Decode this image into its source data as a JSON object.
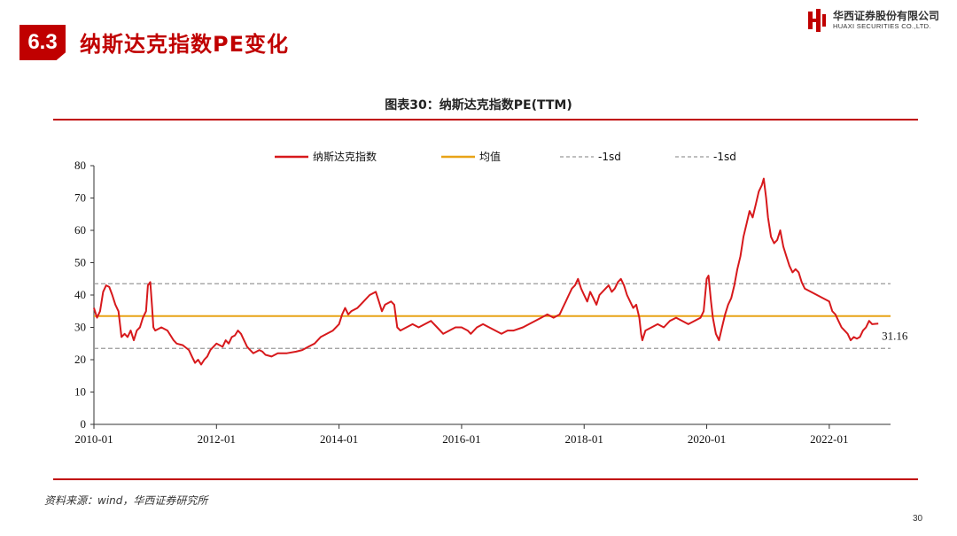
{
  "header": {
    "section_number": "6.3",
    "section_title": "纳斯达克指数PE变化",
    "logo_cn": "华西证券股份有限公司",
    "logo_en": "HUAXI SECURITIES CO.,LTD.",
    "brand_color": "#c00000"
  },
  "chart_title": "图表30：纳斯达克指数PE(TTM)",
  "source": "资料来源：wind，华西证券研究所",
  "page_number": "30",
  "chart_data": {
    "type": "line",
    "title": "图表30：纳斯达克指数PE(TTM)",
    "x_tick_labels": [
      "2010-01",
      "2012-01",
      "2014-01",
      "2016-01",
      "2018-01",
      "2020-01",
      "2022-01"
    ],
    "x_range": [
      2010.0,
      2022.9
    ],
    "ylim": [
      0,
      80
    ],
    "y_ticks": [
      0,
      10,
      20,
      30,
      40,
      50,
      60,
      70,
      80
    ],
    "grid": false,
    "legend_position": "top",
    "end_label": "31.16",
    "series": [
      {
        "name": "纳斯达克指数",
        "color": "#d7191c",
        "style": "solid",
        "points": [
          [
            2010.0,
            36
          ],
          [
            2010.05,
            33
          ],
          [
            2010.1,
            35
          ],
          [
            2010.15,
            41
          ],
          [
            2010.2,
            43
          ],
          [
            2010.25,
            42.5
          ],
          [
            2010.3,
            40
          ],
          [
            2010.35,
            37
          ],
          [
            2010.4,
            35
          ],
          [
            2010.45,
            27
          ],
          [
            2010.5,
            28
          ],
          [
            2010.55,
            27
          ],
          [
            2010.6,
            29
          ],
          [
            2010.65,
            26
          ],
          [
            2010.7,
            29
          ],
          [
            2010.75,
            30
          ],
          [
            2010.8,
            33
          ],
          [
            2010.85,
            35
          ],
          [
            2010.88,
            43
          ],
          [
            2010.92,
            44
          ],
          [
            2010.95,
            36
          ],
          [
            2010.97,
            30
          ],
          [
            2011.0,
            29
          ],
          [
            2011.1,
            30
          ],
          [
            2011.2,
            29
          ],
          [
            2011.3,
            26
          ],
          [
            2011.35,
            25
          ],
          [
            2011.45,
            24.5
          ],
          [
            2011.55,
            23
          ],
          [
            2011.6,
            21
          ],
          [
            2011.65,
            19
          ],
          [
            2011.7,
            20
          ],
          [
            2011.75,
            18.5
          ],
          [
            2011.8,
            20
          ],
          [
            2011.85,
            21
          ],
          [
            2011.9,
            23
          ],
          [
            2012.0,
            25
          ],
          [
            2012.1,
            24
          ],
          [
            2012.15,
            26
          ],
          [
            2012.2,
            25
          ],
          [
            2012.25,
            27
          ],
          [
            2012.3,
            27.5
          ],
          [
            2012.35,
            29
          ],
          [
            2012.4,
            28
          ],
          [
            2012.45,
            26
          ],
          [
            2012.5,
            24
          ],
          [
            2012.55,
            23
          ],
          [
            2012.6,
            22
          ],
          [
            2012.7,
            23
          ],
          [
            2012.75,
            22.5
          ],
          [
            2012.8,
            21.5
          ],
          [
            2012.9,
            21
          ],
          [
            2013.0,
            22
          ],
          [
            2013.15,
            22
          ],
          [
            2013.3,
            22.5
          ],
          [
            2013.4,
            23
          ],
          [
            2013.5,
            24
          ],
          [
            2013.6,
            25
          ],
          [
            2013.7,
            27
          ],
          [
            2013.8,
            28
          ],
          [
            2013.9,
            29
          ],
          [
            2014.0,
            31
          ],
          [
            2014.05,
            34
          ],
          [
            2014.1,
            36
          ],
          [
            2014.15,
            34
          ],
          [
            2014.2,
            35
          ],
          [
            2014.3,
            36
          ],
          [
            2014.4,
            38
          ],
          [
            2014.5,
            40
          ],
          [
            2014.6,
            41
          ],
          [
            2014.65,
            38
          ],
          [
            2014.7,
            35
          ],
          [
            2014.75,
            37
          ],
          [
            2014.85,
            38
          ],
          [
            2014.9,
            37
          ],
          [
            2014.95,
            30
          ],
          [
            2015.0,
            29
          ],
          [
            2015.1,
            30
          ],
          [
            2015.2,
            31
          ],
          [
            2015.3,
            30
          ],
          [
            2015.4,
            31
          ],
          [
            2015.5,
            32
          ],
          [
            2015.6,
            30
          ],
          [
            2015.7,
            28
          ],
          [
            2015.8,
            29
          ],
          [
            2015.9,
            30
          ],
          [
            2016.0,
            30
          ],
          [
            2016.1,
            29
          ],
          [
            2016.15,
            28
          ],
          [
            2016.25,
            30
          ],
          [
            2016.35,
            31
          ],
          [
            2016.45,
            30
          ],
          [
            2016.55,
            29
          ],
          [
            2016.65,
            28
          ],
          [
            2016.75,
            29
          ],
          [
            2016.85,
            29
          ],
          [
            2017.0,
            30
          ],
          [
            2017.1,
            31
          ],
          [
            2017.2,
            32
          ],
          [
            2017.3,
            33
          ],
          [
            2017.4,
            34
          ],
          [
            2017.5,
            33
          ],
          [
            2017.6,
            34
          ],
          [
            2017.65,
            36
          ],
          [
            2017.7,
            38
          ],
          [
            2017.75,
            40
          ],
          [
            2017.8,
            42
          ],
          [
            2017.85,
            43
          ],
          [
            2017.9,
            45
          ],
          [
            2017.95,
            42
          ],
          [
            2018.0,
            40
          ],
          [
            2018.05,
            38
          ],
          [
            2018.1,
            41
          ],
          [
            2018.15,
            39
          ],
          [
            2018.2,
            37
          ],
          [
            2018.25,
            40
          ],
          [
            2018.35,
            42
          ],
          [
            2018.4,
            43
          ],
          [
            2018.45,
            41
          ],
          [
            2018.5,
            42
          ],
          [
            2018.55,
            44
          ],
          [
            2018.6,
            45
          ],
          [
            2018.65,
            43
          ],
          [
            2018.7,
            40
          ],
          [
            2018.75,
            38
          ],
          [
            2018.8,
            36
          ],
          [
            2018.85,
            37
          ],
          [
            2018.9,
            33
          ],
          [
            2018.93,
            28
          ],
          [
            2018.95,
            26
          ],
          [
            2019.0,
            29
          ],
          [
            2019.1,
            30
          ],
          [
            2019.2,
            31
          ],
          [
            2019.3,
            30
          ],
          [
            2019.4,
            32
          ],
          [
            2019.5,
            33
          ],
          [
            2019.6,
            32
          ],
          [
            2019.7,
            31
          ],
          [
            2019.8,
            32
          ],
          [
            2019.9,
            33
          ],
          [
            2019.95,
            35
          ],
          [
            2020.0,
            45
          ],
          [
            2020.03,
            46
          ],
          [
            2020.07,
            38
          ],
          [
            2020.1,
            33
          ],
          [
            2020.15,
            28
          ],
          [
            2020.2,
            26
          ],
          [
            2020.25,
            30
          ],
          [
            2020.3,
            34
          ],
          [
            2020.35,
            37
          ],
          [
            2020.4,
            39
          ],
          [
            2020.45,
            43
          ],
          [
            2020.5,
            48
          ],
          [
            2020.55,
            52
          ],
          [
            2020.6,
            58
          ],
          [
            2020.65,
            62
          ],
          [
            2020.7,
            66
          ],
          [
            2020.75,
            64
          ],
          [
            2020.8,
            68
          ],
          [
            2020.85,
            72
          ],
          [
            2020.9,
            74
          ],
          [
            2020.93,
            76
          ],
          [
            2020.97,
            70
          ],
          [
            2021.0,
            64
          ],
          [
            2021.05,
            58
          ],
          [
            2021.1,
            56
          ],
          [
            2021.15,
            57
          ],
          [
            2021.2,
            60
          ],
          [
            2021.25,
            55
          ],
          [
            2021.3,
            52
          ],
          [
            2021.35,
            49
          ],
          [
            2021.4,
            47
          ],
          [
            2021.45,
            48
          ],
          [
            2021.5,
            47
          ],
          [
            2021.55,
            44
          ],
          [
            2021.6,
            42
          ],
          [
            2021.7,
            41
          ],
          [
            2021.8,
            40
          ],
          [
            2021.9,
            39
          ],
          [
            2022.0,
            38
          ],
          [
            2022.05,
            35
          ],
          [
            2022.1,
            34
          ],
          [
            2022.15,
            32
          ],
          [
            2022.2,
            30
          ],
          [
            2022.25,
            29
          ],
          [
            2022.3,
            28
          ],
          [
            2022.35,
            26
          ],
          [
            2022.4,
            27
          ],
          [
            2022.45,
            26.5
          ],
          [
            2022.5,
            27
          ],
          [
            2022.55,
            29
          ],
          [
            2022.6,
            30
          ],
          [
            2022.65,
            32
          ],
          [
            2022.7,
            31
          ],
          [
            2022.8,
            31.16
          ]
        ]
      },
      {
        "name": "均值",
        "color": "#e8a317",
        "style": "solid",
        "value": 33.5
      },
      {
        "name": "-1sd",
        "color": "#999999",
        "style": "dashed",
        "value": 43.5
      },
      {
        "name": "-1sd",
        "color": "#999999",
        "style": "dashed",
        "value": 23.5
      }
    ]
  }
}
